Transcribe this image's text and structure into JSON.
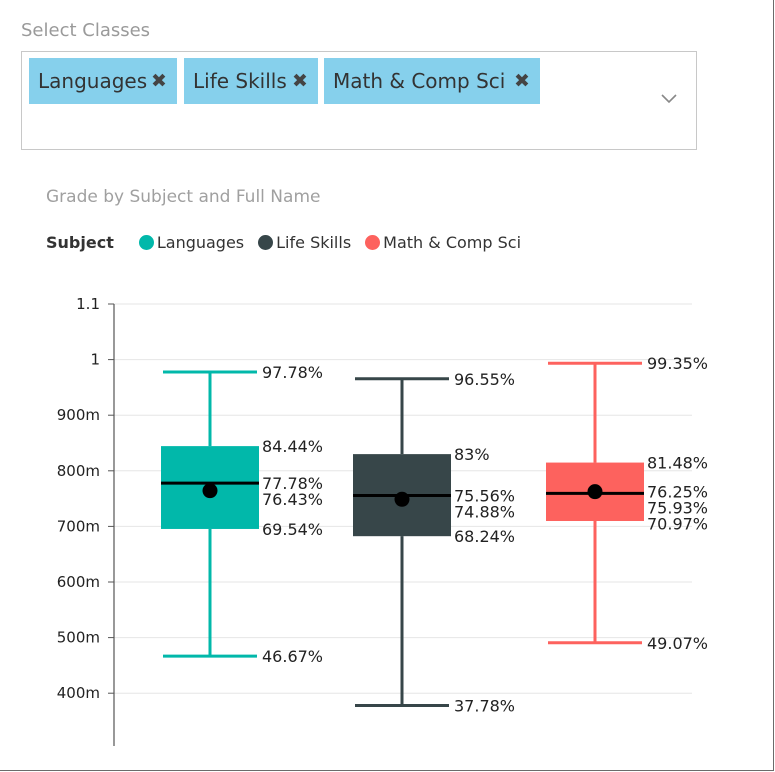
{
  "filter": {
    "label": "Select Classes",
    "chips": [
      {
        "label": "Languages",
        "remove_icon": "close-icon"
      },
      {
        "label": "Life Skills",
        "remove_icon": "close-icon"
      },
      {
        "label": "Math & Comp Sci",
        "remove_icon": "close-icon"
      }
    ],
    "chip_color": "#86d0ec"
  },
  "legend": {
    "title": "Subject",
    "items": [
      {
        "name": "Languages",
        "color": "#01b8aa"
      },
      {
        "name": "Life Skills",
        "color": "#374649"
      },
      {
        "name": "Math & Comp Sci",
        "color": "#fd625e"
      }
    ]
  },
  "chart_data": {
    "type": "boxplot",
    "title": "Grade by Subject and Full Name",
    "ylim": [
      0.36,
      1.1
    ],
    "yticks": [
      {
        "value": 1.1,
        "label": "1.1"
      },
      {
        "value": 1.0,
        "label": "1"
      },
      {
        "value": 0.9,
        "label": "900m"
      },
      {
        "value": 0.8,
        "label": "800m"
      },
      {
        "value": 0.7,
        "label": "700m"
      },
      {
        "value": 0.6,
        "label": "600m"
      },
      {
        "value": 0.5,
        "label": "500m"
      },
      {
        "value": 0.4,
        "label": "400m"
      }
    ],
    "grid": true,
    "series": [
      {
        "name": "Languages",
        "color": "#01b8aa",
        "max": 0.9778,
        "q3": 0.8444,
        "median": 0.7778,
        "mean": 0.7643,
        "q1": 0.6954,
        "min": 0.4667,
        "labels": {
          "max": "97.78%",
          "q3": "84.44%",
          "median": "77.78%",
          "mean": "76.43%",
          "q1": "69.54%",
          "min": "46.67%"
        }
      },
      {
        "name": "Life Skills",
        "color": "#374649",
        "max": 0.9655,
        "q3": 0.83,
        "median": 0.7556,
        "mean": 0.7488,
        "q1": 0.6824,
        "min": 0.3778,
        "labels": {
          "max": "96.55%",
          "q3": "83%",
          "median": "75.56%",
          "mean": "74.88%",
          "q1": "68.24%",
          "min": "37.78%"
        }
      },
      {
        "name": "Math & Comp Sci",
        "color": "#fd625e",
        "max": 0.9935,
        "q3": 0.8148,
        "median": 0.7593,
        "mean": 0.7625,
        "q1": 0.7097,
        "min": 0.4907,
        "labels": {
          "max": "99.35%",
          "q3": "81.48%",
          "median": "75.93%",
          "mean": "76.25%",
          "q1": "70.97%",
          "min": "49.07%"
        }
      }
    ]
  }
}
